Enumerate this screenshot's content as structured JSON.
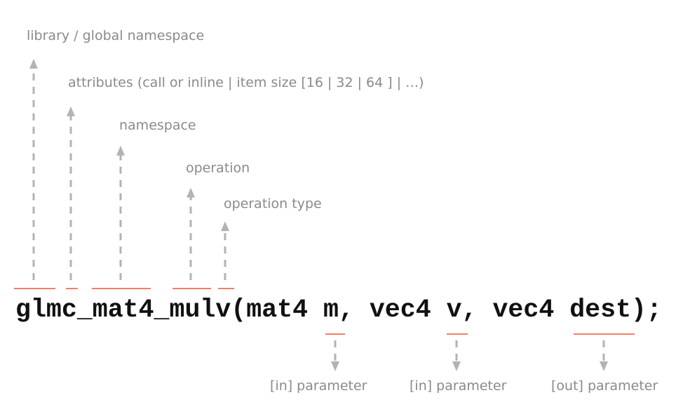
{
  "code": "glmc_mat4_mulv(mat4 m, vec4 v, vec4 dest);",
  "top_labels": [
    "library / global namespace",
    "attributes (call or inline | item size [16 | 32 | 64 ] | …)",
    "namespace",
    "operation",
    "operation type"
  ],
  "bottom_labels": [
    "[in] parameter",
    "[in] parameter",
    "[out] parameter"
  ],
  "colors": {
    "underline": "#f47c6a",
    "arrow": "#b3b3b3",
    "label": "#8a8a8a",
    "code": "#111111"
  }
}
